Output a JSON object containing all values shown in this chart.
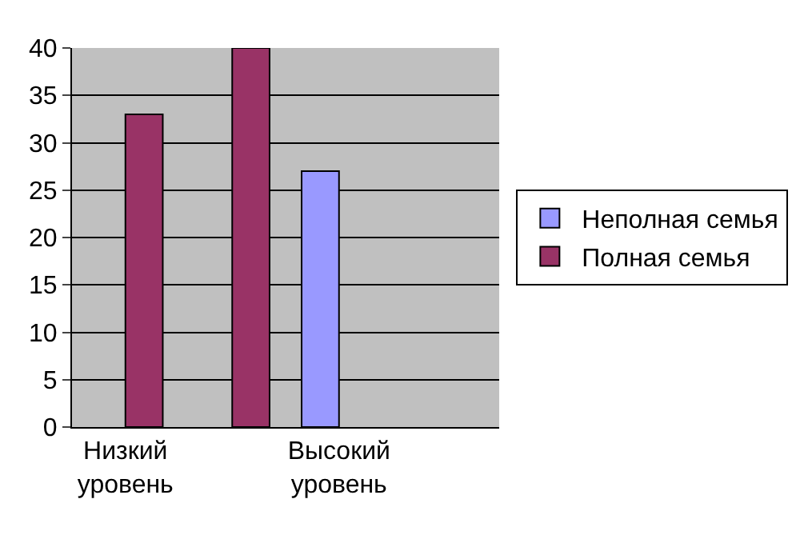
{
  "chart_data": {
    "type": "bar",
    "categories": [
      "Низкий уровень",
      null,
      "Высокий уровень",
      null
    ],
    "series": [
      {
        "name": "Неполная семья",
        "color": "#9999ff",
        "values": [
          null,
          null,
          27,
          null
        ]
      },
      {
        "name": "Полная семья",
        "color": "#993366",
        "values": [
          33,
          40,
          null,
          null
        ]
      }
    ],
    "ylim": [
      0,
      40
    ],
    "yticks": [
      0,
      5,
      10,
      15,
      20,
      25,
      30,
      35,
      40
    ],
    "grid": "y",
    "legend": "right"
  }
}
